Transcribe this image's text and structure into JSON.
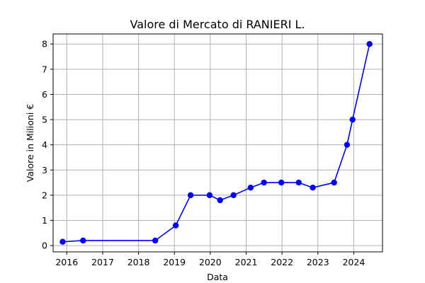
{
  "chart_data": {
    "type": "line",
    "title": "Valore di Mercato di RANIERI L.",
    "xlabel": "Data",
    "ylabel": "Valore in Milioni €",
    "grid": true,
    "color": "#0000ff",
    "xlim": [
      "2015-08-15",
      "2024-10-20"
    ],
    "ylim": [
      -0.25,
      8.4
    ],
    "xticks": [
      "2016",
      "2017",
      "2018",
      "2019",
      "2020",
      "2021",
      "2022",
      "2023",
      "2024"
    ],
    "yticks": [
      "0",
      "1",
      "2",
      "3",
      "4",
      "5",
      "6",
      "7",
      "8"
    ],
    "series": [
      {
        "x": [
          "2015-11-20",
          "2016-06-15",
          "2018-06-20",
          "2019-01-15",
          "2019-06-15",
          "2019-12-25",
          "2020-04-10",
          "2020-08-25",
          "2021-02-15",
          "2021-07-01",
          "2021-12-25",
          "2022-06-20",
          "2022-11-10",
          "2023-06-15",
          "2023-10-25",
          "2023-12-20",
          "2024-06-10"
        ],
        "y": [
          0.15,
          0.2,
          0.2,
          0.8,
          2.0,
          2.0,
          1.8,
          2.0,
          2.3,
          2.5,
          2.5,
          2.5,
          2.3,
          2.5,
          4.0,
          5.0,
          8.0
        ]
      }
    ]
  }
}
